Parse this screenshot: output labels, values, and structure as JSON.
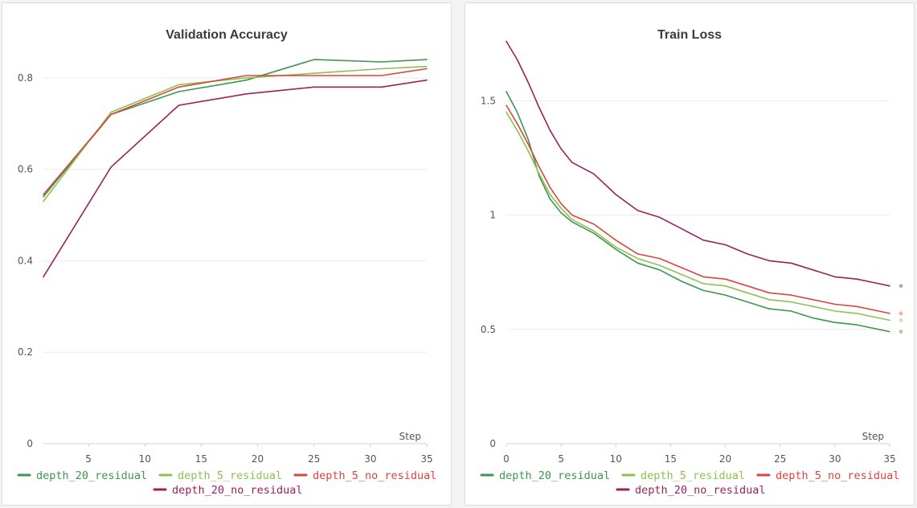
{
  "chart_data": [
    {
      "type": "line",
      "title": "Validation Accuracy",
      "xlabel": "Step",
      "xlim": [
        1,
        35
      ],
      "ylim": [
        0,
        0.9
      ],
      "xticks": [
        5,
        10,
        15,
        20,
        25,
        30,
        35
      ],
      "yticks": [
        0,
        0.2,
        0.4,
        0.6,
        0.8
      ],
      "ytick_labels": [
        "0",
        "0.2",
        "0.4",
        "0.6",
        "0.8"
      ],
      "grid": "horizontal",
      "legend_position": "bottom",
      "series": [
        {
          "name": "depth_20_residual",
          "color": "#3e9651",
          "x": [
            1,
            7,
            13,
            19,
            25,
            31,
            35
          ],
          "y": [
            0.54,
            0.72,
            0.77,
            0.795,
            0.84,
            0.835,
            0.84
          ]
        },
        {
          "name": "depth_5_residual",
          "color": "#8cc152",
          "x": [
            1,
            7,
            13,
            19,
            25,
            31,
            35
          ],
          "y": [
            0.53,
            0.725,
            0.785,
            0.8,
            0.81,
            0.82,
            0.825
          ]
        },
        {
          "name": "depth_5_no_residual",
          "color": "#d9453e",
          "x": [
            1,
            7,
            13,
            19,
            25,
            31,
            35
          ],
          "y": [
            0.545,
            0.72,
            0.78,
            0.805,
            0.805,
            0.805,
            0.82
          ]
        },
        {
          "name": "depth_20_no_residual",
          "color": "#9b2159",
          "x": [
            1,
            7,
            13,
            19,
            25,
            31,
            35
          ],
          "y": [
            0.365,
            0.605,
            0.74,
            0.765,
            0.78,
            0.78,
            0.795
          ]
        }
      ]
    },
    {
      "type": "line",
      "title": "Train Loss",
      "xlabel": "Step",
      "xlim": [
        0,
        35
      ],
      "ylim": [
        0,
        1.8
      ],
      "xticks": [
        0,
        5,
        10,
        15,
        20,
        25,
        30,
        35
      ],
      "yticks": [
        0,
        0.5,
        1,
        1.5
      ],
      "ytick_labels": [
        "0",
        "0.5",
        "1",
        "1.5"
      ],
      "grid": "horizontal",
      "legend_position": "bottom",
      "series": [
        {
          "name": "depth_20_residual",
          "color": "#3e9651",
          "x": [
            0,
            1,
            2,
            3,
            4,
            5,
            6,
            8,
            10,
            12,
            14,
            16,
            18,
            20,
            22,
            24,
            26,
            28,
            30,
            32,
            34,
            35
          ],
          "y": [
            1.54,
            1.45,
            1.33,
            1.17,
            1.07,
            1.01,
            0.97,
            0.92,
            0.85,
            0.79,
            0.76,
            0.71,
            0.67,
            0.65,
            0.62,
            0.59,
            0.58,
            0.55,
            0.53,
            0.52,
            0.5,
            0.49
          ]
        },
        {
          "name": "depth_5_residual",
          "color": "#8cc152",
          "x": [
            0,
            1,
            2,
            3,
            4,
            5,
            6,
            8,
            10,
            12,
            14,
            16,
            18,
            20,
            22,
            24,
            26,
            28,
            30,
            32,
            34,
            35
          ],
          "y": [
            1.45,
            1.37,
            1.28,
            1.18,
            1.09,
            1.03,
            0.98,
            0.93,
            0.86,
            0.81,
            0.78,
            0.74,
            0.7,
            0.69,
            0.66,
            0.63,
            0.62,
            0.6,
            0.58,
            0.57,
            0.55,
            0.54
          ]
        },
        {
          "name": "depth_5_no_residual",
          "color": "#d9453e",
          "x": [
            0,
            1,
            2,
            3,
            4,
            5,
            6,
            8,
            10,
            12,
            14,
            16,
            18,
            20,
            22,
            24,
            26,
            28,
            30,
            32,
            34,
            35
          ],
          "y": [
            1.48,
            1.4,
            1.31,
            1.21,
            1.12,
            1.05,
            1.0,
            0.96,
            0.89,
            0.83,
            0.81,
            0.77,
            0.73,
            0.72,
            0.69,
            0.66,
            0.65,
            0.63,
            0.61,
            0.6,
            0.58,
            0.57
          ]
        },
        {
          "name": "depth_20_no_residual",
          "color": "#9b2159",
          "x": [
            0,
            1,
            2,
            3,
            4,
            5,
            6,
            8,
            10,
            12,
            14,
            16,
            18,
            20,
            22,
            24,
            26,
            28,
            30,
            32,
            34,
            35
          ],
          "y": [
            1.76,
            1.68,
            1.58,
            1.47,
            1.37,
            1.29,
            1.23,
            1.18,
            1.09,
            1.02,
            0.99,
            0.94,
            0.89,
            0.87,
            0.83,
            0.8,
            0.79,
            0.76,
            0.73,
            0.72,
            0.7,
            0.69
          ]
        }
      ]
    }
  ]
}
